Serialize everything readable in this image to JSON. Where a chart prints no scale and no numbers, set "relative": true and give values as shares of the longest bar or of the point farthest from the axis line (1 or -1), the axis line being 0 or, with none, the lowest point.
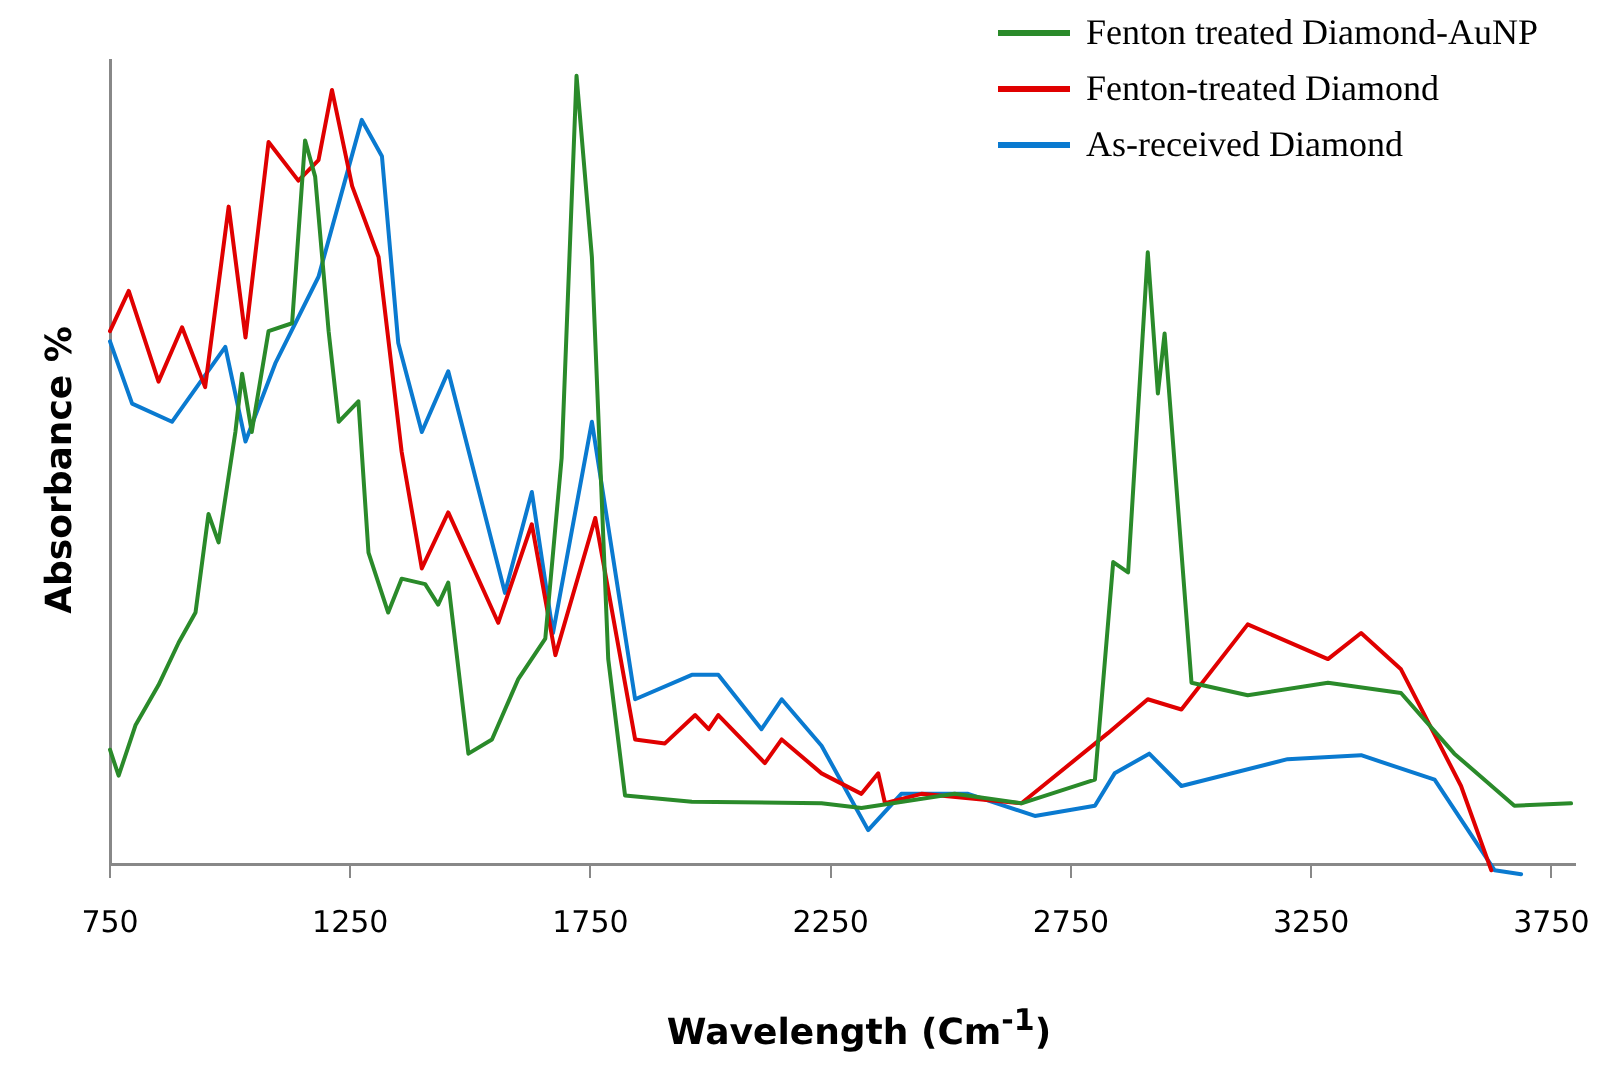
{
  "chart_data": {
    "type": "line",
    "xlabel": "Wavelength (Cm$^{-1}$)",
    "ylabel": "Absorbance %",
    "relative": true,
    "xlim": [
      750,
      3800
    ],
    "xticks": [
      750,
      1250,
      1750,
      2250,
      2750,
      3250,
      3750
    ],
    "legend": "top right",
    "marker": "none",
    "line_style": "solid",
    "series": [
      {
        "name": "Fenton treated Diamond-AuNP",
        "color": "#2a8a2a",
        "x": [
          750,
          768,
          803,
          851,
          893,
          928,
          955,
          976,
          1011,
          1025,
          1045,
          1080,
          1129,
          1156,
          1177,
          1205,
          1226,
          1267,
          1288,
          1329,
          1357,
          1406,
          1433,
          1454,
          1496,
          1545,
          1600,
          1656,
          1690,
          1721,
          1753,
          1787,
          1822,
          1961,
          2231,
          2314,
          2508,
          2647,
          2800,
          2838,
          2869,
          2910,
          2931,
          2945,
          3001,
          3118,
          3285,
          3437,
          3548,
          3673,
          3791
        ],
        "values": [
          0.145,
          0.112,
          0.176,
          0.227,
          0.281,
          0.319,
          0.444,
          0.408,
          0.548,
          0.622,
          0.548,
          0.676,
          0.686,
          0.918,
          0.872,
          0.676,
          0.561,
          0.587,
          0.395,
          0.319,
          0.362,
          0.355,
          0.329,
          0.357,
          0.14,
          0.158,
          0.235,
          0.286,
          0.515,
          1,
          0.77,
          0.26,
          0.087,
          0.079,
          0.077,
          0.071,
          0.089,
          0.077,
          0.107,
          0.383,
          0.37,
          0.776,
          0.597,
          0.673,
          0.23,
          0.214,
          0.23,
          0.217,
          0.14,
          0.074,
          0.077
        ]
      },
      {
        "name": "Fenton-treated Diamond",
        "color": "#e00000",
        "x": [
          750,
          789,
          851,
          900,
          948,
          997,
          1032,
          1080,
          1142,
          1184,
          1212,
          1254,
          1309,
          1357,
          1399,
          1454,
          1558,
          1628,
          1677,
          1760,
          1843,
          1905,
          1968,
          1996,
          2016,
          2113,
          2148,
          2231,
          2314,
          2349,
          2363,
          2439,
          2647,
          2827,
          2910,
          2980,
          3118,
          3285,
          3354,
          3437,
          3562,
          3625
        ],
        "values": [
          0.676,
          0.727,
          0.612,
          0.681,
          0.605,
          0.834,
          0.668,
          0.916,
          0.867,
          0.893,
          0.982,
          0.86,
          0.77,
          0.523,
          0.375,
          0.446,
          0.306,
          0.431,
          0.265,
          0.439,
          0.158,
          0.153,
          0.189,
          0.171,
          0.189,
          0.128,
          0.158,
          0.115,
          0.089,
          0.115,
          0.077,
          0.089,
          0.077,
          0.166,
          0.209,
          0.196,
          0.304,
          0.26,
          0.293,
          0.247,
          0.099,
          -0.008
        ]
      },
      {
        "name": "As-received Diamond",
        "color": "#0a7ad0",
        "x": [
          750,
          796,
          879,
          990,
          1032,
          1094,
          1184,
          1274,
          1316,
          1350,
          1399,
          1454,
          1572,
          1628,
          1672,
          1753,
          1843,
          1961,
          2016,
          2106,
          2148,
          2231,
          2328,
          2397,
          2536,
          2675,
          2800,
          2841,
          2913,
          2980,
          3201,
          3354,
          3507,
          3632,
          3687
        ],
        "values": [
          0.663,
          0.584,
          0.561,
          0.656,
          0.536,
          0.635,
          0.745,
          0.944,
          0.898,
          0.661,
          0.548,
          0.625,
          0.344,
          0.472,
          0.293,
          0.561,
          0.209,
          0.24,
          0.24,
          0.171,
          0.209,
          0.15,
          0.043,
          0.089,
          0.089,
          0.061,
          0.074,
          0.115,
          0.14,
          0.099,
          0.133,
          0.138,
          0.107,
          -0.008,
          -0.013
        ]
      }
    ]
  }
}
